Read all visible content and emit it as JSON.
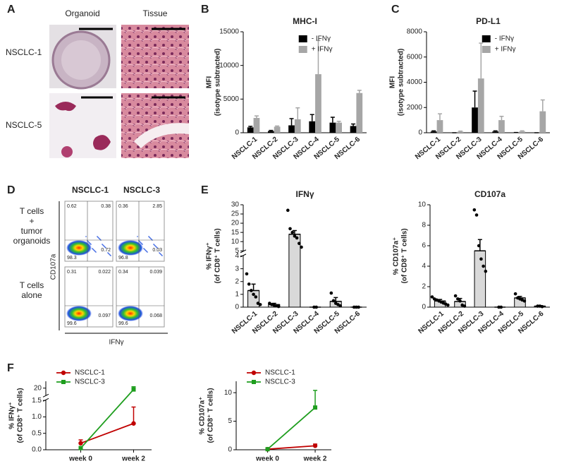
{
  "panels": [
    "A",
    "B",
    "C",
    "D",
    "E",
    "F"
  ],
  "images": {
    "columns": [
      "Organoid",
      "Tissue"
    ],
    "rows": [
      "NSCLC-1",
      "NSCLC-5"
    ]
  },
  "flow": {
    "columns": [
      "NSCLC-1",
      "NSCLC-3"
    ],
    "rows": [
      [
        "T cells",
        "+",
        "tumor",
        "organoids"
      ],
      [
        "T cells",
        "alone"
      ]
    ],
    "y_label": "CD107a",
    "x_label": "IFNγ",
    "quadrants": [
      [
        [
          "0.62",
          "0.38",
          "98.3",
          "0.72"
        ],
        [
          "0.36",
          "2.85",
          "96.8",
          "0.03"
        ]
      ],
      [
        [
          "0.31",
          "0.022",
          "99.6",
          "0.097"
        ],
        [
          "0.34",
          "0.039",
          "99.6",
          "0.068"
        ]
      ]
    ]
  },
  "chart_data": [
    {
      "type": "bar",
      "title": "MHC-I",
      "y_label": [
        "MFI",
        "(isotype subtracted)"
      ],
      "categories": [
        "NSCLC-1",
        "NSCLC-2",
        "NSCLC-3",
        "NSCLC-4",
        "NSCLC-5",
        "NSCLC-6"
      ],
      "series": [
        {
          "name": "- IFNγ",
          "color": "#000000",
          "values": [
            800,
            250,
            1100,
            1700,
            1500,
            1000
          ],
          "errors": [
            150,
            100,
            1000,
            1000,
            800,
            300
          ]
        },
        {
          "name": "+ IFNγ",
          "color": "#a6a6a6",
          "values": [
            2200,
            900,
            2000,
            8700,
            1500,
            5900
          ],
          "errors": [
            300,
            100,
            1700,
            5000,
            200,
            400
          ]
        }
      ],
      "ylim": [
        0,
        15000
      ],
      "yticks": [
        0,
        5000,
        10000,
        15000
      ],
      "error_bars": "up",
      "legend": "top-right"
    },
    {
      "type": "bar",
      "title": "PD-L1",
      "y_label": [
        "MFI",
        "(isotype subtracted)"
      ],
      "categories": [
        "NSCLC-1",
        "NSCLC-2",
        "NSCLC-3",
        "NSCLC-4",
        "NSCLC-5",
        "NSCLC-6"
      ],
      "series": [
        {
          "name": "- IFNγ",
          "color": "#000000",
          "values": [
            100,
            0,
            2000,
            100,
            0,
            0
          ],
          "errors": [
            50,
            0,
            1300,
            50,
            20,
            0
          ]
        },
        {
          "name": "+ IFNγ",
          "color": "#a6a6a6",
          "values": [
            1000,
            80,
            4300,
            1000,
            100,
            1700
          ],
          "errors": [
            500,
            50,
            2800,
            300,
            50,
            900
          ]
        }
      ],
      "ylim": [
        0,
        8000
      ],
      "yticks": [
        0,
        2000,
        4000,
        6000,
        8000
      ],
      "error_bars": "up",
      "legend": "top-right"
    },
    {
      "type": "bar",
      "title": "IFNγ",
      "y_label": [
        "% IFNγ⁺",
        "(of CD8⁺ T cells)"
      ],
      "categories": [
        "NSCLC-1",
        "NSCLC-2",
        "NSCLC-3",
        "NSCLC-4",
        "NSCLC-5",
        "NSCLC-6"
      ],
      "series": [
        {
          "color": "#d9d9d9",
          "values": [
            1.3,
            0.2,
            14,
            0,
            0.45,
            0
          ],
          "errors": [
            0.5,
            0.1,
            2,
            0,
            0.3,
            0
          ],
          "points": [
            [
              2.6,
              1.8,
              1.3,
              1.0,
              0.8,
              0.3,
              0.2
            ],
            [
              0.3,
              0.2,
              0.15,
              0.1,
              0.05
            ],
            [
              27,
              17,
              15,
              13,
              12,
              9,
              7
            ],
            [
              0,
              0
            ],
            [
              1.1,
              0.5,
              0.3,
              0.2,
              0.1
            ],
            [
              0,
              0,
              0
            ]
          ]
        }
      ],
      "edgecolor": "#000000",
      "ylim": [
        0,
        30
      ],
      "axis_break": [
        4,
        5
      ],
      "yticks": [
        0,
        1,
        2,
        3,
        4,
        5,
        10,
        15,
        20,
        25,
        30
      ],
      "error_bars": "both"
    },
    {
      "type": "bar",
      "title": "CD107a",
      "y_label": [
        "% CD107a⁺",
        "(of CD8⁺ T cells)"
      ],
      "categories": [
        "NSCLC-1",
        "NSCLC-2",
        "NSCLC-3",
        "NSCLC-4",
        "NSCLC-5",
        "NSCLC-6"
      ],
      "series": [
        {
          "color": "#d9d9d9",
          "values": [
            0.6,
            0.55,
            5.5,
            0,
            0.9,
            0.1
          ],
          "errors": [
            0.15,
            0.3,
            1.1,
            0,
            0.15,
            0.05
          ],
          "points": [
            [
              1.0,
              0.8,
              0.7,
              0.6,
              0.5,
              0.4,
              0.3,
              0.2
            ],
            [
              1.1,
              0.8,
              0.6,
              0.2,
              0.1
            ],
            [
              9.5,
              9.0,
              6.0,
              4.7,
              4.0,
              3.5
            ],
            [
              0,
              0
            ],
            [
              1.3,
              0.9,
              0.8,
              0.7,
              0.6
            ],
            [
              0.1,
              0.1,
              0.05
            ]
          ]
        }
      ],
      "edgecolor": "#000000",
      "ylim": [
        0,
        10
      ],
      "yticks": [
        0,
        2,
        4,
        6,
        8,
        10
      ],
      "error_bars": "both"
    },
    {
      "type": "line",
      "y_label": [
        "% IFNγ⁺",
        "(of CD8⁺ T cells)"
      ],
      "categories": [
        "week 0",
        "week 2"
      ],
      "series": [
        {
          "name": "NSCLC-1",
          "color": "#c00000",
          "marker": "circle",
          "values": [
            0.2,
            0.8
          ],
          "errors": [
            0.1,
            0.5
          ]
        },
        {
          "name": "NSCLC-3",
          "color": "#1e9e1e",
          "marker": "square",
          "values": [
            0.05,
            19
          ],
          "errors": [
            0.05,
            2
          ]
        }
      ],
      "ylim": [
        0,
        25
      ],
      "axis_break": [
        1.5,
        15
      ],
      "yticks": [
        {
          "value": 0,
          "label": "0.0"
        },
        {
          "value": 0.5,
          "label": "0.5"
        },
        {
          "value": 1,
          "label": "1.0"
        },
        {
          "value": 1.5,
          "label": "1.5"
        },
        20
      ],
      "error_bars": "up",
      "legend": "top-left"
    },
    {
      "type": "line",
      "y_label": [
        "% CD107a⁺",
        "(of CD8⁺ T cells)"
      ],
      "categories": [
        "week 0",
        "week 2"
      ],
      "series": [
        {
          "name": "NSCLC-1",
          "color": "#c00000",
          "marker": "circle",
          "values": [
            0.1,
            0.7
          ],
          "errors": [
            0.05,
            0.3
          ]
        },
        {
          "name": "NSCLC-3",
          "color": "#1e9e1e",
          "marker": "square",
          "values": [
            0.1,
            7.4
          ],
          "errors": [
            0.05,
            3
          ]
        }
      ],
      "ylim": [
        0,
        12
      ],
      "yticks": [
        0,
        5,
        10
      ],
      "error_bars": "up",
      "legend": "top-left"
    }
  ]
}
